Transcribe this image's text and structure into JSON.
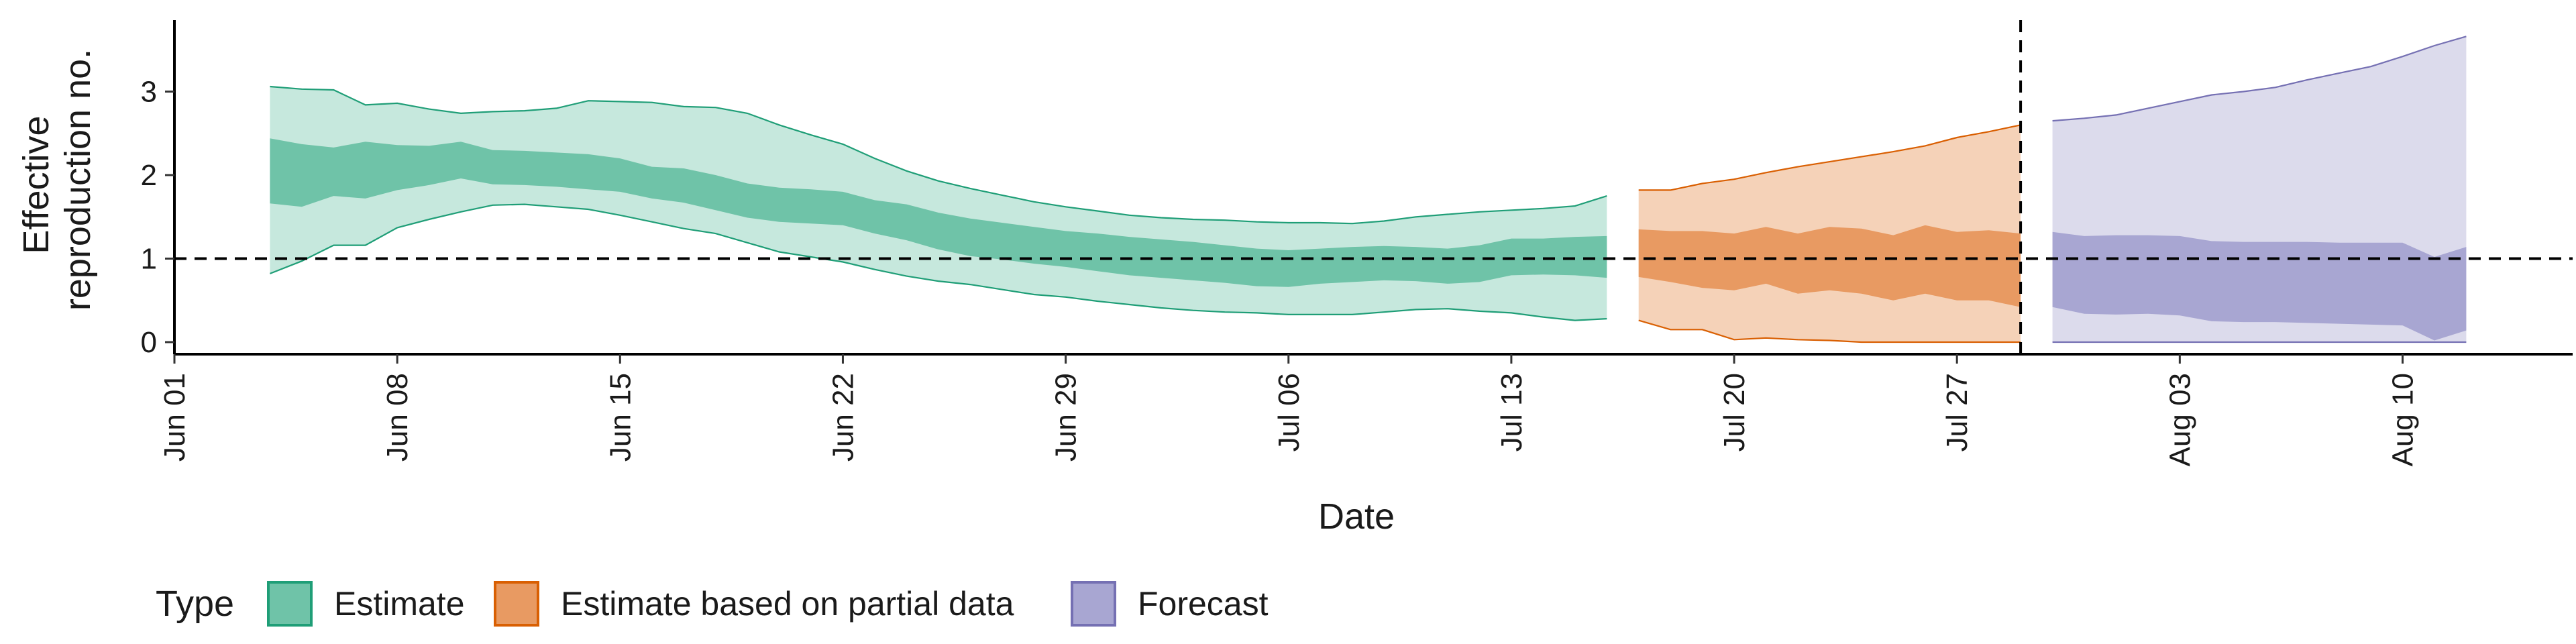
{
  "chart_data": {
    "type": "area",
    "title": "",
    "xlabel": "Date",
    "ylabel": [
      "Effective",
      "reproduction no."
    ],
    "x_start_date": "2020-06-01",
    "x_ticks": [
      "Jun 01",
      "Jun 08",
      "Jun 15",
      "Jun 22",
      "Jun 29",
      "Jul 06",
      "Jul 13",
      "Jul 20",
      "Jul 27",
      "Aug 03",
      "Aug 10"
    ],
    "y_ticks": [
      "0",
      "1",
      "2",
      "3"
    ],
    "ylim": [
      -0.15,
      3.85
    ],
    "reference_line_y": 1,
    "forecast_date": "2020-07-29",
    "grid": false,
    "legend_position": "bottom",
    "legend_title": "Type",
    "series": [
      {
        "name": "Estimate",
        "fill": "#6fc3a8",
        "fill_light": "#c6e8dd",
        "stroke": "#1f9e77",
        "x": [
          "2020-06-04",
          "2020-06-05",
          "2020-06-06",
          "2020-06-07",
          "2020-06-08",
          "2020-06-09",
          "2020-06-10",
          "2020-06-11",
          "2020-06-12",
          "2020-06-13",
          "2020-06-14",
          "2020-06-15",
          "2020-06-16",
          "2020-06-17",
          "2020-06-18",
          "2020-06-19",
          "2020-06-20",
          "2020-06-21",
          "2020-06-22",
          "2020-06-23",
          "2020-06-24",
          "2020-06-25",
          "2020-06-26",
          "2020-06-27",
          "2020-06-28",
          "2020-06-29",
          "2020-06-30",
          "2020-07-01",
          "2020-07-02",
          "2020-07-03",
          "2020-07-04",
          "2020-07-05",
          "2020-07-06",
          "2020-07-07",
          "2020-07-08",
          "2020-07-09",
          "2020-07-10",
          "2020-07-11",
          "2020-07-12",
          "2020-07-13",
          "2020-07-14",
          "2020-07-15",
          "2020-07-16"
        ],
        "upper90": [
          3.06,
          3.03,
          3.02,
          2.84,
          2.86,
          2.79,
          2.74,
          2.76,
          2.77,
          2.8,
          2.89,
          2.88,
          2.87,
          2.82,
          2.81,
          2.74,
          2.6,
          2.48,
          2.37,
          2.2,
          2.05,
          1.93,
          1.84,
          1.76,
          1.68,
          1.62,
          1.57,
          1.52,
          1.49,
          1.47,
          1.46,
          1.44,
          1.43,
          1.43,
          1.42,
          1.45,
          1.5,
          1.53,
          1.56,
          1.58,
          1.6,
          1.63,
          1.75
        ],
        "upper50": [
          2.44,
          2.37,
          2.33,
          2.4,
          2.36,
          2.35,
          2.4,
          2.3,
          2.29,
          2.27,
          2.25,
          2.2,
          2.1,
          2.08,
          2.0,
          1.9,
          1.85,
          1.83,
          1.8,
          1.7,
          1.65,
          1.55,
          1.48,
          1.43,
          1.38,
          1.33,
          1.3,
          1.26,
          1.23,
          1.2,
          1.16,
          1.12,
          1.1,
          1.12,
          1.14,
          1.15,
          1.14,
          1.12,
          1.16,
          1.24,
          1.24,
          1.26,
          1.27
        ],
        "lower50": [
          1.66,
          1.62,
          1.75,
          1.72,
          1.82,
          1.88,
          1.96,
          1.89,
          1.88,
          1.86,
          1.83,
          1.8,
          1.72,
          1.67,
          1.58,
          1.49,
          1.44,
          1.42,
          1.4,
          1.3,
          1.22,
          1.11,
          1.03,
          0.99,
          0.94,
          0.9,
          0.85,
          0.8,
          0.77,
          0.74,
          0.71,
          0.67,
          0.66,
          0.7,
          0.72,
          0.74,
          0.73,
          0.7,
          0.72,
          0.8,
          0.81,
          0.8,
          0.77
        ],
        "lower90": [
          0.82,
          0.97,
          1.16,
          1.16,
          1.37,
          1.47,
          1.56,
          1.64,
          1.65,
          1.62,
          1.59,
          1.52,
          1.44,
          1.36,
          1.3,
          1.19,
          1.08,
          1.02,
          0.96,
          0.87,
          0.79,
          0.73,
          0.69,
          0.63,
          0.57,
          0.54,
          0.49,
          0.45,
          0.41,
          0.38,
          0.36,
          0.35,
          0.33,
          0.33,
          0.33,
          0.36,
          0.39,
          0.4,
          0.37,
          0.35,
          0.3,
          0.26,
          0.28
        ]
      },
      {
        "name": "Estimate based on partial data",
        "fill": "#e89a62",
        "fill_light": "#f5d2b8",
        "stroke": "#d95f02",
        "x": [
          "2020-07-17",
          "2020-07-18",
          "2020-07-19",
          "2020-07-20",
          "2020-07-21",
          "2020-07-22",
          "2020-07-23",
          "2020-07-24",
          "2020-07-25",
          "2020-07-26",
          "2020-07-27",
          "2020-07-28",
          "2020-07-29"
        ],
        "upper90": [
          1.82,
          1.82,
          1.9,
          1.95,
          2.03,
          2.1,
          2.16,
          2.22,
          2.28,
          2.35,
          2.45,
          2.52,
          2.6
        ],
        "upper50": [
          1.35,
          1.33,
          1.33,
          1.3,
          1.38,
          1.3,
          1.38,
          1.36,
          1.28,
          1.4,
          1.32,
          1.34,
          1.3
        ],
        "lower50": [
          0.78,
          0.72,
          0.65,
          0.62,
          0.7,
          0.58,
          0.62,
          0.58,
          0.5,
          0.58,
          0.5,
          0.5,
          0.42
        ],
        "lower90": [
          0.26,
          0.15,
          0.15,
          0.03,
          0.05,
          0.03,
          0.02,
          0.0,
          0.0,
          0.0,
          0.0,
          0.0,
          0.0
        ]
      },
      {
        "name": "Forecast",
        "fill": "#a8a6d2",
        "fill_light": "#dcdbec",
        "stroke": "#7570b3",
        "x": [
          "2020-07-30",
          "2020-07-31",
          "2020-08-01",
          "2020-08-02",
          "2020-08-03",
          "2020-08-04",
          "2020-08-05",
          "2020-08-06",
          "2020-08-07",
          "2020-08-08",
          "2020-08-09",
          "2020-08-10",
          "2020-08-11",
          "2020-08-12"
        ],
        "upper90": [
          2.65,
          2.68,
          2.72,
          2.8,
          2.88,
          2.96,
          3.0,
          3.05,
          3.14,
          3.22,
          3.3,
          3.42,
          3.55,
          3.66
        ],
        "upper50": [
          1.32,
          1.27,
          1.28,
          1.28,
          1.27,
          1.21,
          1.2,
          1.2,
          1.2,
          1.19,
          1.19,
          1.19,
          1.02,
          1.14
        ],
        "lower50": [
          0.42,
          0.34,
          0.33,
          0.34,
          0.32,
          0.25,
          0.24,
          0.24,
          0.23,
          0.22,
          0.21,
          0.2,
          0.02,
          0.14
        ],
        "lower90": [
          0.0,
          0.0,
          0.0,
          0.0,
          0.0,
          0.0,
          0.0,
          0.0,
          0.0,
          0.0,
          0.0,
          0.0,
          0.0,
          0.0
        ]
      }
    ]
  }
}
